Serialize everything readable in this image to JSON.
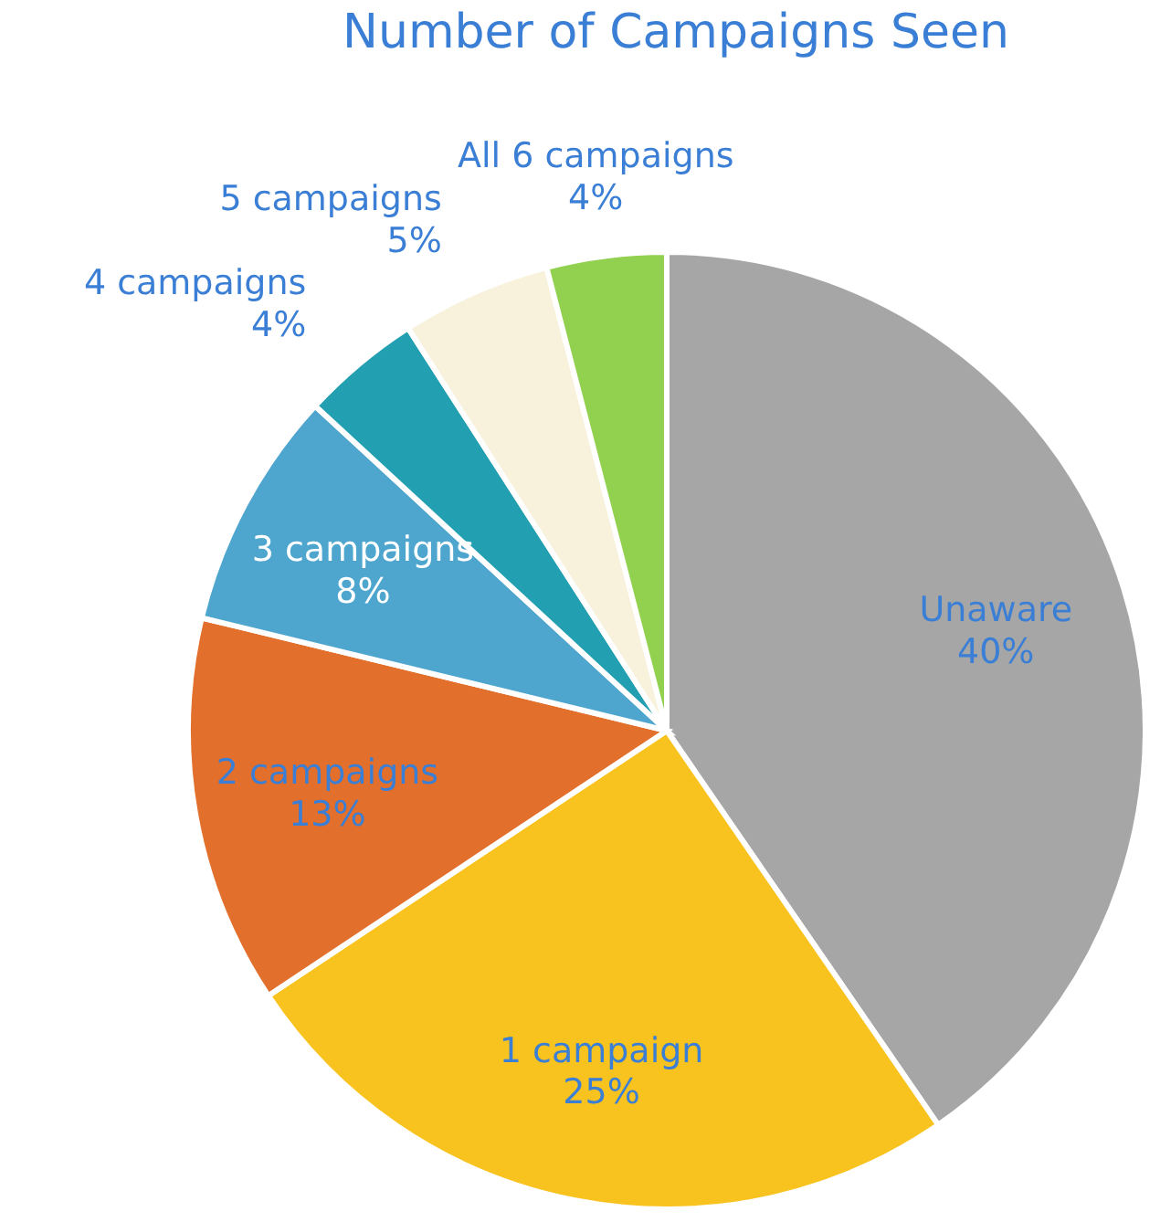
{
  "chart_data": {
    "type": "pie",
    "title": "Number of Campaigns Seen",
    "categories": [
      "Unaware",
      "1 campaign",
      "2 campaigns",
      "3 campaigns",
      "4 campaigns",
      "5 campaigns",
      "All 6 campaigns"
    ],
    "values": [
      40,
      25,
      13,
      8,
      4,
      5,
      4
    ],
    "colors": [
      "#a6a6a6",
      "#f9c31f",
      "#e2702c",
      "#4ea6cf",
      "#229fb0",
      "#f8f2dc",
      "#92d050"
    ],
    "value_labels": [
      "40%",
      "25%",
      "13%",
      "8%",
      "4%",
      "5%",
      "4%"
    ]
  }
}
